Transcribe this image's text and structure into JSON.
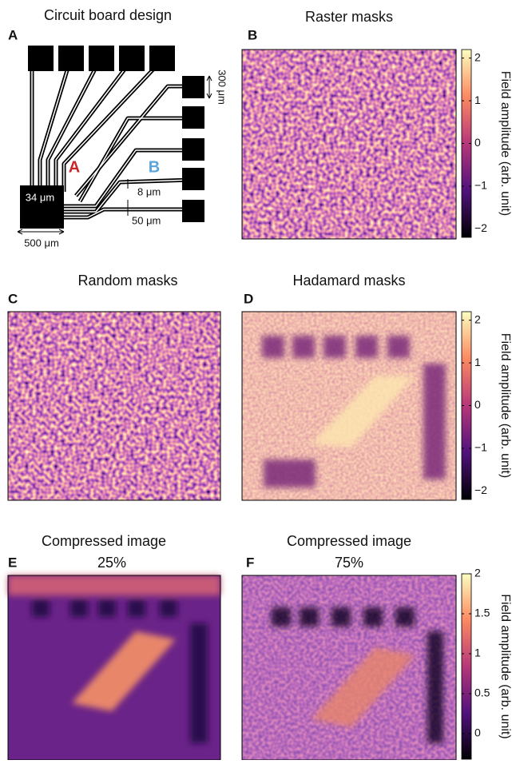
{
  "panels": [
    {
      "letter": "A",
      "title": "Circuit board design",
      "labels": [
        "A",
        "B",
        "34 μm",
        "8 μm",
        "50 μm",
        "500 μm",
        "300 μm"
      ]
    },
    {
      "letter": "B",
      "title": "Raster masks"
    },
    {
      "letter": "C",
      "title": "Random masks"
    },
    {
      "letter": "D",
      "title": "Hadamard masks"
    },
    {
      "letter": "E",
      "title": "Compressed image",
      "subtitle": "25%"
    },
    {
      "letter": "F",
      "title": "Compressed image",
      "subtitle": "75%"
    }
  ],
  "colorbars": [
    {
      "label": "Field amplitude (arb. unit)",
      "lim": [
        -2.2,
        2.2
      ],
      "ticks": [
        {
          "value": -2,
          "label": "−2"
        },
        {
          "value": -1,
          "label": "−1"
        },
        0,
        1,
        2
      ]
    },
    {
      "label": "Field amplitude (arb. unit)",
      "lim": [
        -2.2,
        2.2
      ],
      "ticks": [
        {
          "value": -2,
          "label": "−2"
        },
        {
          "value": -1,
          "label": "−1"
        },
        0,
        1,
        2
      ]
    },
    {
      "label": "Field amplitude (arb. unit)",
      "lim": [
        -0.32,
        2
      ],
      "ticks": [
        0,
        0.5,
        1,
        1.5,
        2
      ]
    }
  ]
}
